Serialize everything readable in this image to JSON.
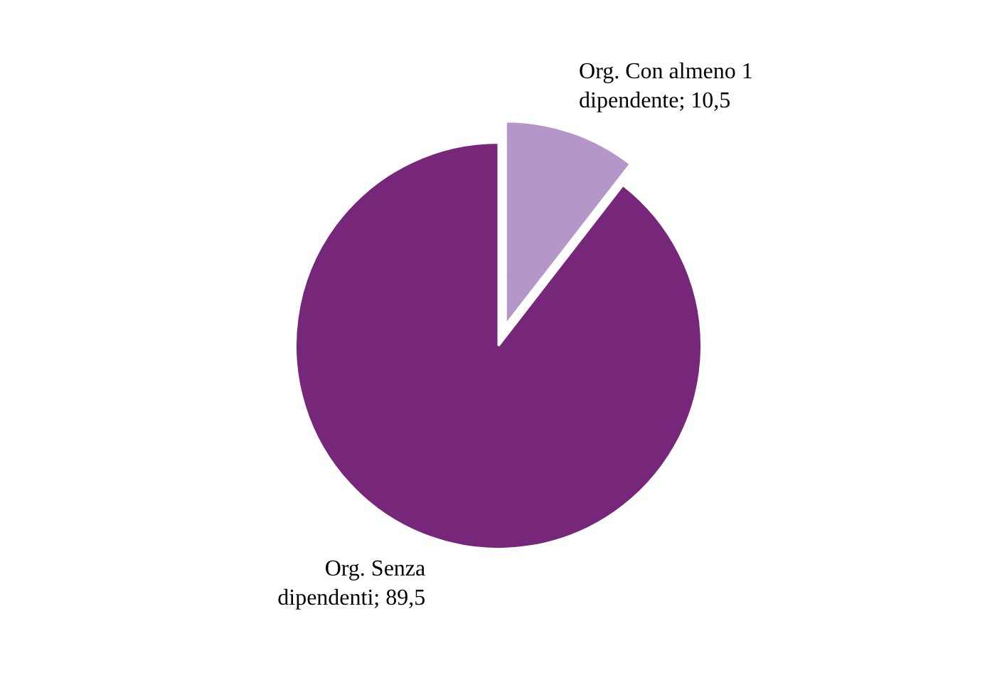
{
  "chart_data": {
    "type": "pie",
    "categories": [
      "Org. Con almeno 1 dipendente",
      "Org. Senza dipendenti"
    ],
    "values": [
      10.5,
      89.5
    ],
    "colors": [
      "#b596c8",
      "#77277a"
    ],
    "value_labels": [
      "10,5",
      "89,5"
    ]
  }
}
